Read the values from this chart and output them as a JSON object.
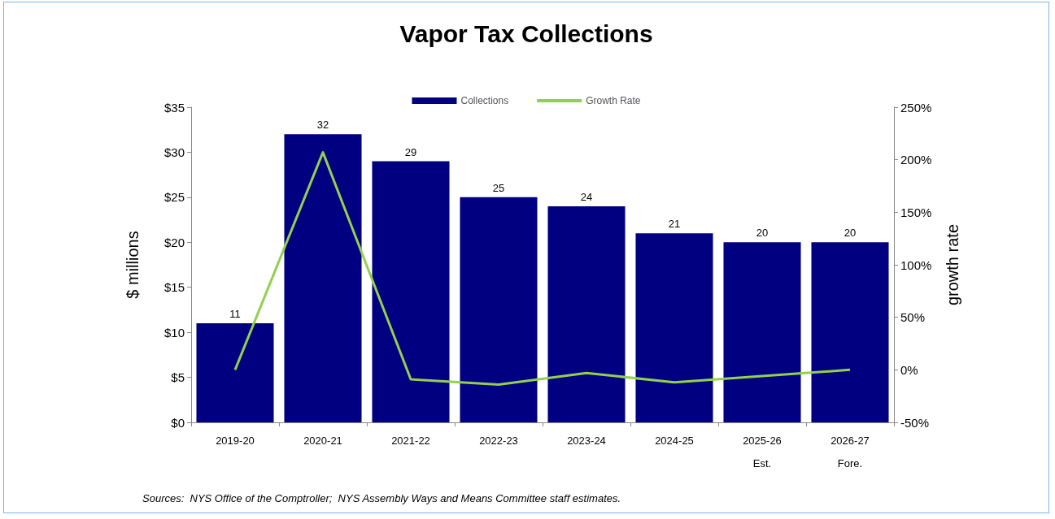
{
  "chart_data": {
    "type": "bar",
    "title": "Vapor Tax Collections",
    "ylabel": "$ millions",
    "y2label": "growth rate",
    "categories": [
      "2019-20",
      "2020-21",
      "2021-22",
      "2022-23",
      "2023-24",
      "2024-25",
      "2025-26\nEst.",
      "2026-27\nFore."
    ],
    "series": [
      {
        "name": "Collections",
        "color": "#000080",
        "values": [
          11,
          32,
          29,
          25,
          24,
          21,
          20,
          20
        ],
        "value_labels": [
          "11",
          "32",
          "29",
          "25",
          "24",
          "21",
          "20",
          "20"
        ]
      },
      {
        "name": "Growth Rate",
        "type": "line",
        "axis": "y2",
        "color": "#92d050",
        "marker": "none",
        "values": [
          0,
          207,
          -9,
          -14,
          -3,
          -12,
          -6,
          0
        ]
      }
    ],
    "ylim": [
      0,
      35
    ],
    "yticks": [
      {
        "value": 0,
        "label": "$0"
      },
      {
        "value": 5,
        "label": "$5"
      },
      {
        "value": 10,
        "label": "$10"
      },
      {
        "value": 15,
        "label": "$15"
      },
      {
        "value": 20,
        "label": "$20"
      },
      {
        "value": 25,
        "label": "$25"
      },
      {
        "value": 30,
        "label": "$30"
      },
      {
        "value": 35,
        "label": "$35"
      }
    ],
    "y2lim": [
      -50,
      250
    ],
    "y2ticks": [
      {
        "value": -50,
        "label": "-50%"
      },
      {
        "value": 0,
        "label": "0%"
      },
      {
        "value": 50,
        "label": "50%"
      },
      {
        "value": 100,
        "label": "100%"
      },
      {
        "value": 150,
        "label": "150%"
      },
      {
        "value": 200,
        "label": "200%"
      },
      {
        "value": 250,
        "label": "250%"
      }
    ],
    "grid": false,
    "legend": "top",
    "annotations": [
      "Sources:  NYS Office of the Comptroller;  NYS Assembly Ways and Means Committee staff estimates."
    ]
  }
}
